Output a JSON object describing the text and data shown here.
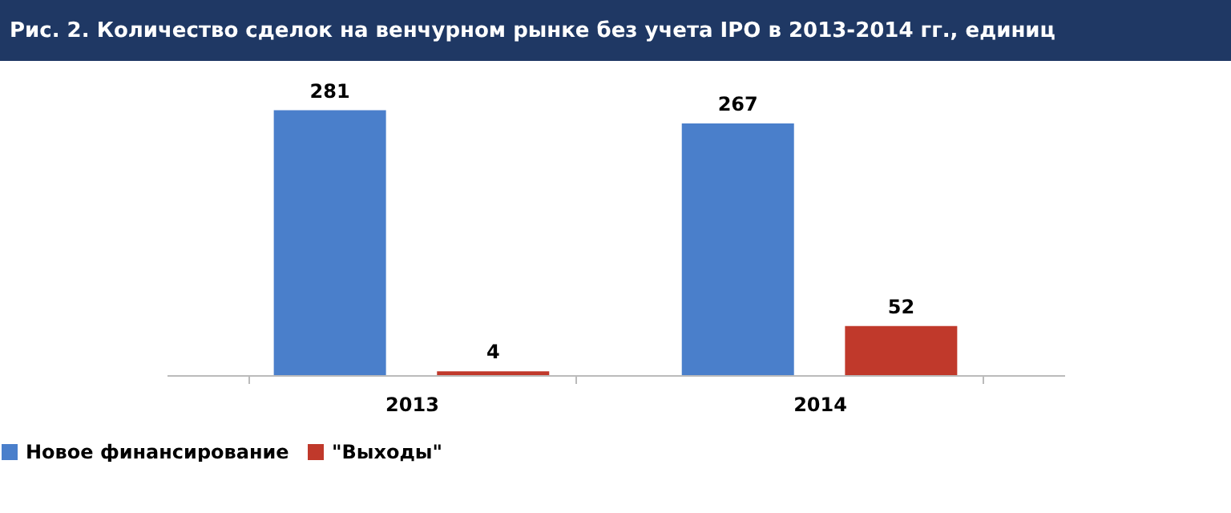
{
  "chart_data": {
    "type": "bar",
    "title": "Рис. 2. Количество сделок на венчурном рынке без учета IPO в 2013-2014 гг., единиц",
    "categories": [
      "2013",
      "2014"
    ],
    "series": [
      {
        "name": "Новое финансирование",
        "color": "#4a7fcb",
        "values": [
          281,
          267
        ]
      },
      {
        "name": "\"Выходы\"",
        "color": "#c0392b",
        "values": [
          4,
          52
        ]
      }
    ],
    "data_labels": true,
    "legend": "bottom",
    "grid": false
  }
}
